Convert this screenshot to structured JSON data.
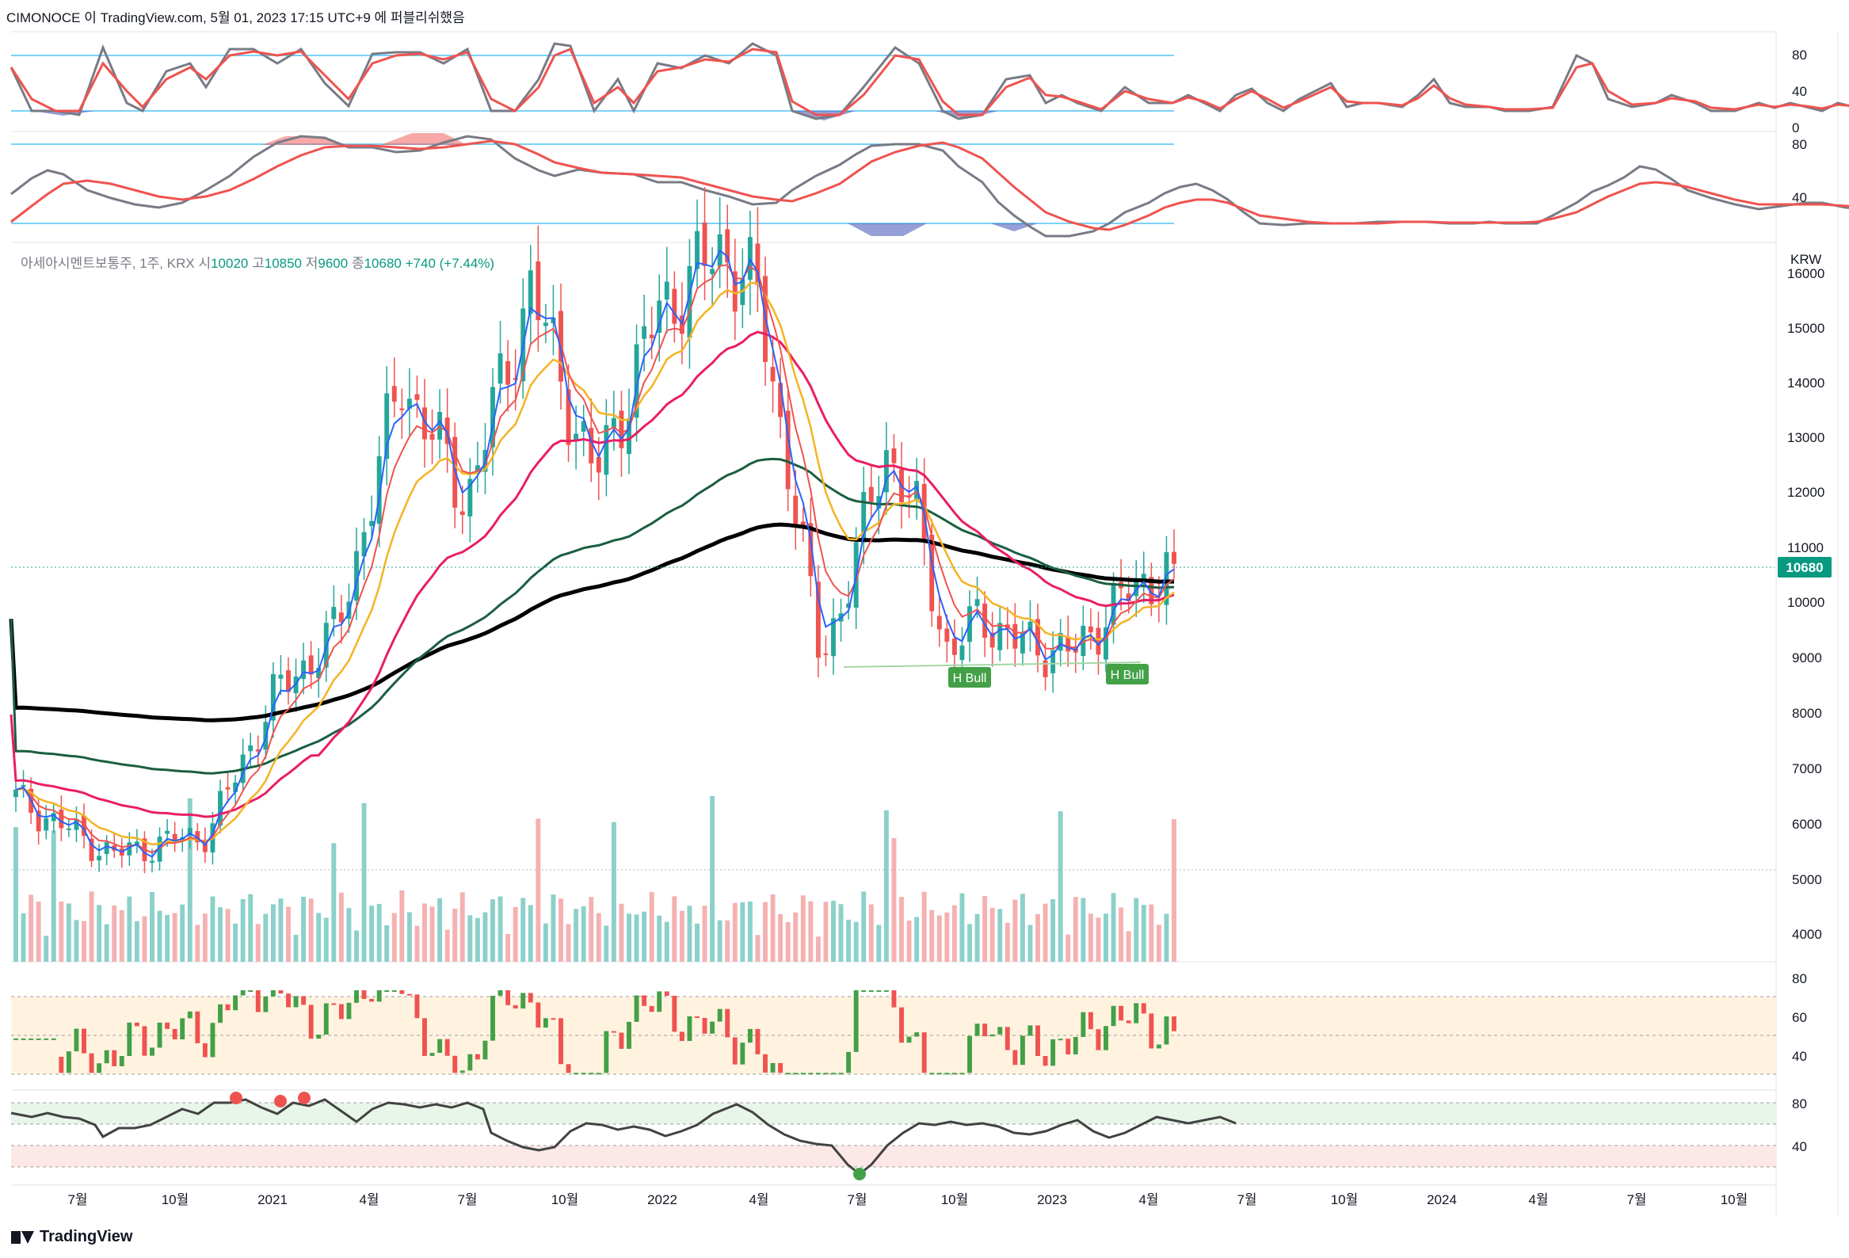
{
  "header": {
    "text": "CIMONOCE 이 TradingView.com, 5월 01, 2023 17:15 UTC+9 에 퍼블리쉬했음"
  },
  "legend": {
    "symbol": "아세아시멘트보통주, 1주, KRX",
    "open_label": "시",
    "open": "10020",
    "high_label": "고",
    "high": "10850",
    "low_label": "저",
    "low": "9600",
    "close_label": "종",
    "close": "10680",
    "change": "+740 (+7.44%)"
  },
  "price_axis": {
    "currency": "KRW",
    "ticks": [
      "16000",
      "15000",
      "14000",
      "13000",
      "12000",
      "11000",
      "10000",
      "9000",
      "8000",
      "7000",
      "6000",
      "5000",
      "4000"
    ],
    "last_price_label": "10680"
  },
  "stoch_axis_1": [
    "80",
    "40",
    "0"
  ],
  "stoch_axis_2": [
    "80",
    "40"
  ],
  "rsi_axis": [
    "80",
    "60",
    "40"
  ],
  "osc_axis": [
    "80",
    "40"
  ],
  "time_axis": [
    "7월",
    "10월",
    "2021",
    "4월",
    "7월",
    "10월",
    "2022",
    "4월",
    "7월",
    "10월",
    "2023",
    "4월",
    "7월",
    "10월",
    "2024",
    "4월",
    "7월",
    "10월"
  ],
  "annotations": {
    "bull_1": "H Bull",
    "bull_2": "H Bull"
  },
  "footer": {
    "brand": "TradingView"
  },
  "colors": {
    "up": "#26a69a",
    "down": "#ef5350",
    "ema_fast": "#2962ff",
    "ema_red": "#ef5350",
    "ema_orange": "#f5b324",
    "ema_pink": "#e91e63",
    "ma_green": "#1b5e40",
    "ma_black": "#000000"
  },
  "chart_data": {
    "type": "candlestick",
    "interval": "1주",
    "x_range": [
      "2020-05",
      "2024-11"
    ],
    "ylim": [
      3600,
      16400
    ],
    "key_points": [
      {
        "date": "2020-05",
        "close": 6500
      },
      {
        "date": "2020-08",
        "close": 5500
      },
      {
        "date": "2020-11",
        "close": 5900
      },
      {
        "date": "2021-01",
        "close": 8300
      },
      {
        "date": "2021-03",
        "close": 9500
      },
      {
        "date": "2021-05",
        "close": 14000
      },
      {
        "date": "2021-07",
        "close": 11800
      },
      {
        "date": "2021-09",
        "close": 15600
      },
      {
        "date": "2021-11",
        "close": 12200
      },
      {
        "date": "2022-01",
        "close": 15200
      },
      {
        "date": "2022-03",
        "close": 16300
      },
      {
        "date": "2022-04",
        "close": 15500
      },
      {
        "date": "2022-05",
        "close": 12500
      },
      {
        "date": "2022-06",
        "close": 9000
      },
      {
        "date": "2022-07",
        "close": 10500
      },
      {
        "date": "2022-08",
        "close": 12800
      },
      {
        "date": "2022-09",
        "close": 11500
      },
      {
        "date": "2022-10",
        "close": 9000
      },
      {
        "date": "2022-11",
        "close": 9800
      },
      {
        "date": "2022-12",
        "close": 9300
      },
      {
        "date": "2023-02",
        "close": 9100
      },
      {
        "date": "2023-03",
        "close": 9900
      },
      {
        "date": "2023-05",
        "close": 10680
      }
    ],
    "last": {
      "open": 10020,
      "high": 10850,
      "low": 9600,
      "close": 10680,
      "change": 740,
      "change_pct": 7.44
    }
  }
}
